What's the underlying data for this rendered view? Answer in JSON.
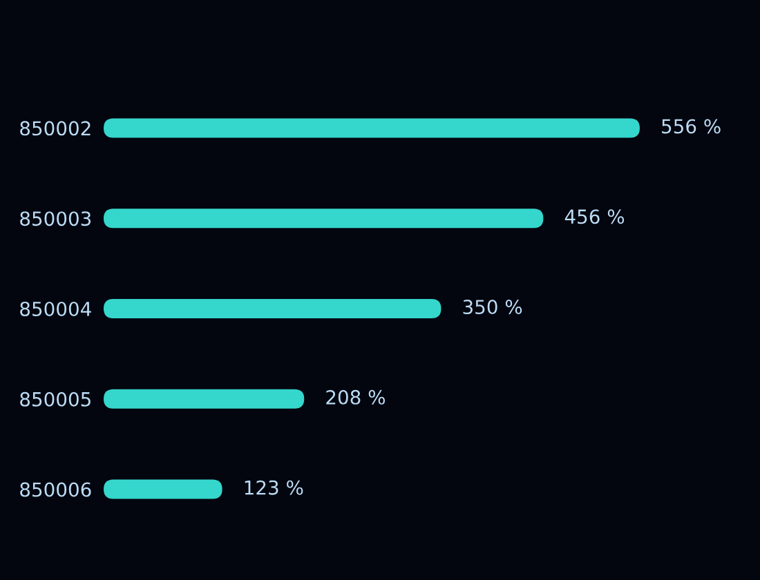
{
  "chart_data": {
    "type": "bar",
    "orientation": "horizontal",
    "categories": [
      "850002",
      "850003",
      "850004",
      "850005",
      "850006"
    ],
    "values": [
      556,
      456,
      350,
      208,
      123
    ],
    "value_labels": [
      "556 %",
      "456 %",
      "350 %",
      "208 %",
      "123 %"
    ],
    "color": "#35d6cc",
    "grid": false,
    "legend": false
  }
}
